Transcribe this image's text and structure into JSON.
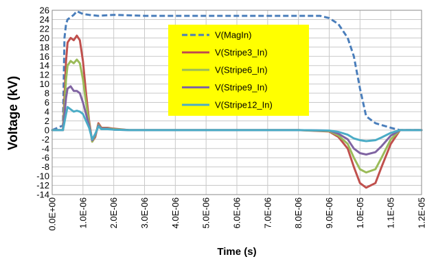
{
  "chart_data": {
    "type": "line",
    "title": "",
    "xlabel": "Time (s)",
    "ylabel": "Voltage (kV)",
    "xlim": [
      0,
      1.2e-05
    ],
    "ylim": [
      -14,
      26
    ],
    "grid": true,
    "legend_position": "top-center",
    "x_tick_values": [
      0,
      1e-06,
      2e-06,
      3e-06,
      4e-06,
      5e-06,
      6e-06,
      7e-06,
      8e-06,
      9e-06,
      1e-05,
      1.1e-05,
      1.2e-05
    ],
    "x_tick_labels": [
      "0.0E+00",
      "1.0E-06",
      "2.0E-06",
      "3.0E-06",
      "4.0E-06",
      "5.0E-06",
      "6.0E-06",
      "7.0E-06",
      "8.0E-06",
      "9.0E-06",
      "1.0E-05",
      "1.1E-05",
      "1.2E-05"
    ],
    "y_ticks": [
      26,
      24,
      22,
      20,
      18,
      16,
      14,
      12,
      10,
      8,
      6,
      4,
      2,
      0,
      -2,
      -4,
      -6,
      -8,
      -10,
      -12,
      -14
    ],
    "legend_bg": "#ffff00",
    "series": [
      {
        "name": "V(MagIn)",
        "color": "#4a7ebb",
        "dash": "dashed",
        "x": [
          0,
          3.5e-07,
          4e-07,
          4.5e-07,
          5e-07,
          6e-07,
          7e-07,
          8e-07,
          9e-07,
          1e-06,
          1.2e-06,
          1.5e-06,
          2e-06,
          3e-06,
          4e-06,
          5e-06,
          6e-06,
          7e-06,
          8e-06,
          8.7e-06,
          9e-06,
          9.3e-06,
          9.6e-06,
          9.8e-06,
          1e-05,
          1.02e-05,
          1.05e-05,
          1.1e-05,
          1.13e-05,
          1.2e-05
        ],
        "y": [
          0,
          1,
          20,
          23,
          24,
          24.5,
          25,
          25.8,
          25.5,
          25.2,
          25,
          24.8,
          25,
          24.8,
          24.8,
          24.8,
          24.8,
          24.8,
          24.8,
          24.8,
          24.3,
          23,
          20,
          16,
          9,
          3,
          1.5,
          0.5,
          0,
          0
        ]
      },
      {
        "name": "V(Stripe3_In)",
        "color": "#c0504d",
        "dash": "solid",
        "x": [
          0,
          3.5e-07,
          4.5e-07,
          5e-07,
          6e-07,
          7e-07,
          8e-07,
          9e-07,
          1e-06,
          1.1e-06,
          1.2e-06,
          1.3e-06,
          1.4e-06,
          1.5e-06,
          1.6e-06,
          1.8e-06,
          2e-06,
          2.5e-06,
          3e-06,
          5e-06,
          8e-06,
          9e-06,
          9.3e-06,
          9.6e-06,
          9.8e-06,
          1e-05,
          1.02e-05,
          1.05e-05,
          1.07e-05,
          1.1e-05,
          1.13e-05,
          1.2e-05
        ],
        "y": [
          0,
          0,
          15,
          19,
          20,
          19.5,
          20.5,
          19.5,
          15,
          8,
          2,
          -2.5,
          -1.5,
          1.5,
          0.5,
          0.5,
          0.3,
          0,
          0,
          0,
          0,
          -0.3,
          -1.5,
          -4,
          -8,
          -11.5,
          -12.5,
          -11.5,
          -8,
          -3,
          0,
          0
        ]
      },
      {
        "name": "V(Stripe6_In)",
        "color": "#9bbb59",
        "dash": "solid",
        "x": [
          0,
          3.5e-07,
          4.5e-07,
          5e-07,
          6e-07,
          7e-07,
          8e-07,
          9e-07,
          1e-06,
          1.1e-06,
          1.2e-06,
          1.3e-06,
          1.4e-06,
          1.5e-06,
          1.6e-06,
          1.8e-06,
          2e-06,
          2.5e-06,
          3e-06,
          5e-06,
          8e-06,
          9e-06,
          9.3e-06,
          9.6e-06,
          9.8e-06,
          1e-05,
          1.02e-05,
          1.05e-05,
          1.07e-05,
          1.1e-05,
          1.13e-05,
          1.2e-05
        ],
        "y": [
          0,
          0,
          11,
          14,
          15,
          14.5,
          15.3,
          14.5,
          11,
          6,
          1.5,
          -2.5,
          -1.2,
          1.2,
          0.4,
          0.4,
          0.2,
          0,
          0,
          0,
          0,
          -0.2,
          -1.2,
          -3,
          -6,
          -8.5,
          -9.2,
          -8.5,
          -6,
          -2,
          0,
          0
        ]
      },
      {
        "name": "V(Stripe9_In)",
        "color": "#8064a2",
        "dash": "solid",
        "x": [
          0,
          3.5e-07,
          4.5e-07,
          5e-07,
          6e-07,
          7e-07,
          8e-07,
          9e-07,
          1e-06,
          1.1e-06,
          1.2e-06,
          1.3e-06,
          1.4e-06,
          1.5e-06,
          1.6e-06,
          1.8e-06,
          2e-06,
          2.5e-06,
          3e-06,
          5e-06,
          8e-06,
          9e-06,
          9.3e-06,
          9.6e-06,
          9.8e-06,
          1e-05,
          1.02e-05,
          1.05e-05,
          1.07e-05,
          1.1e-05,
          1.13e-05,
          1.2e-05
        ],
        "y": [
          0,
          0,
          7,
          9,
          9.5,
          8.5,
          8.5,
          8,
          6,
          3.5,
          1,
          -2.2,
          -1,
          1,
          0.3,
          0.3,
          0.1,
          0,
          0,
          0,
          0,
          -0.1,
          -0.8,
          -2,
          -4,
          -5,
          -5.3,
          -4.8,
          -3.5,
          -1.2,
          0,
          0
        ]
      },
      {
        "name": "V(Stripe12_In)",
        "color": "#4bacc6",
        "dash": "solid",
        "x": [
          0,
          3.5e-07,
          4.5e-07,
          5e-07,
          6e-07,
          7e-07,
          8e-07,
          9e-07,
          1e-06,
          1.1e-06,
          1.2e-06,
          1.3e-06,
          1.4e-06,
          1.5e-06,
          1.6e-06,
          1.8e-06,
          2e-06,
          2.5e-06,
          3e-06,
          5e-06,
          8e-06,
          9e-06,
          9.3e-06,
          9.6e-06,
          9.8e-06,
          1e-05,
          1.02e-05,
          1.05e-05,
          1.07e-05,
          1.1e-05,
          1.13e-05,
          1.2e-05
        ],
        "y": [
          0,
          0,
          3.5,
          5,
          4.5,
          4,
          4.2,
          4,
          3.5,
          2,
          0.5,
          -2,
          -0.8,
          0.8,
          0.2,
          0.2,
          0.1,
          0,
          0,
          0,
          0,
          -0.1,
          -0.4,
          -1,
          -1.8,
          -2.2,
          -2.4,
          -2.2,
          -1.6,
          -0.6,
          0,
          0
        ]
      }
    ]
  }
}
